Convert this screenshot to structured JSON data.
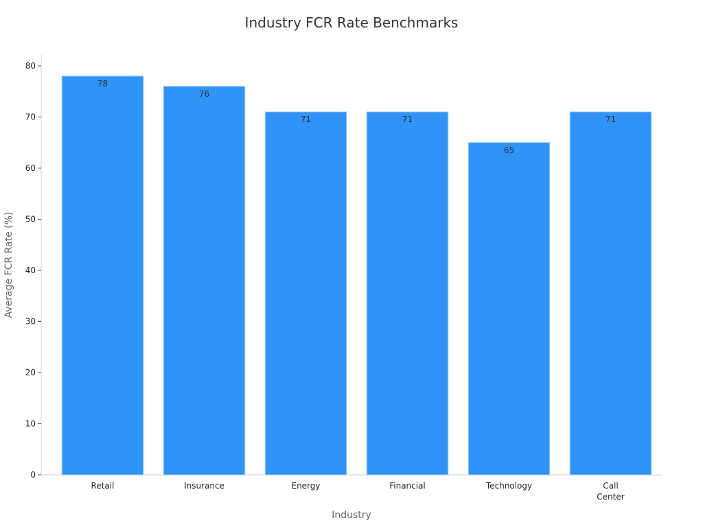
{
  "chart_data": {
    "type": "bar",
    "title": "Industry FCR Rate Benchmarks",
    "xlabel": "Industry",
    "ylabel": "Average FCR Rate (%)",
    "categories": [
      [
        "Retail"
      ],
      [
        "Insurance"
      ],
      [
        "Energy"
      ],
      [
        "Financial"
      ],
      [
        "Technology"
      ],
      [
        "Call",
        "Center"
      ]
    ],
    "values": [
      78,
      76,
      71,
      71,
      65,
      71
    ],
    "data_labels": [
      "78",
      "76",
      "71",
      "71",
      "65",
      "71"
    ],
    "ylim": [
      0,
      82
    ],
    "y_ticks": [
      0,
      10,
      20,
      30,
      40,
      50,
      60,
      70,
      80
    ],
    "grid": false,
    "legend": "none",
    "colors": {
      "bar": "#2f93f8",
      "bar_edge": "#9ccaf7"
    }
  }
}
